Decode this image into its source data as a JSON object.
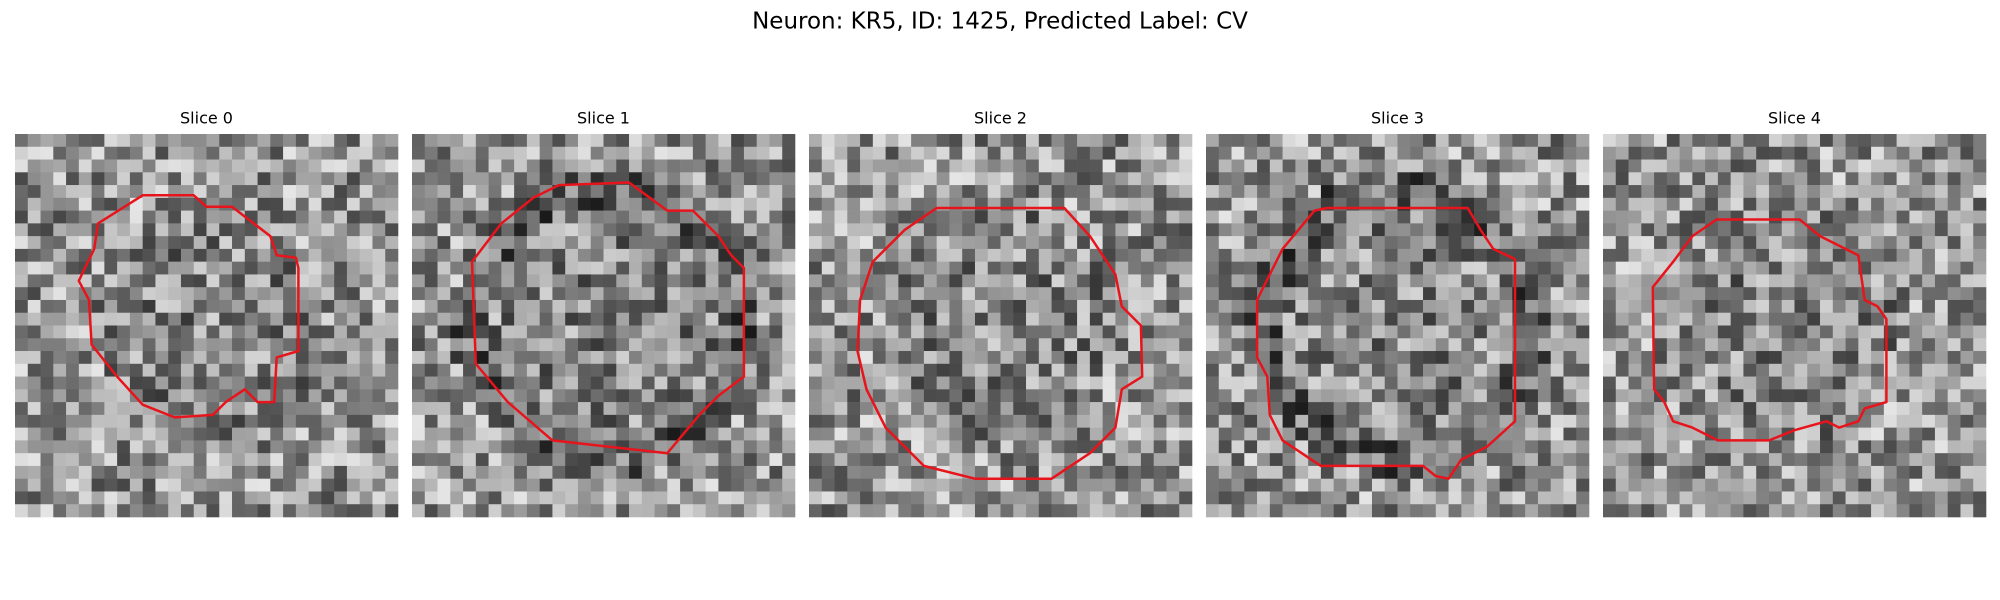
{
  "title": "Neuron: KR5, ID: 1425, Predicted Label: CV",
  "panels": [
    {
      "title": "Slice 0"
    },
    {
      "title": "Slice 1"
    },
    {
      "title": "Slice 2"
    },
    {
      "title": "Slice 3"
    },
    {
      "title": "Slice 4"
    }
  ]
}
